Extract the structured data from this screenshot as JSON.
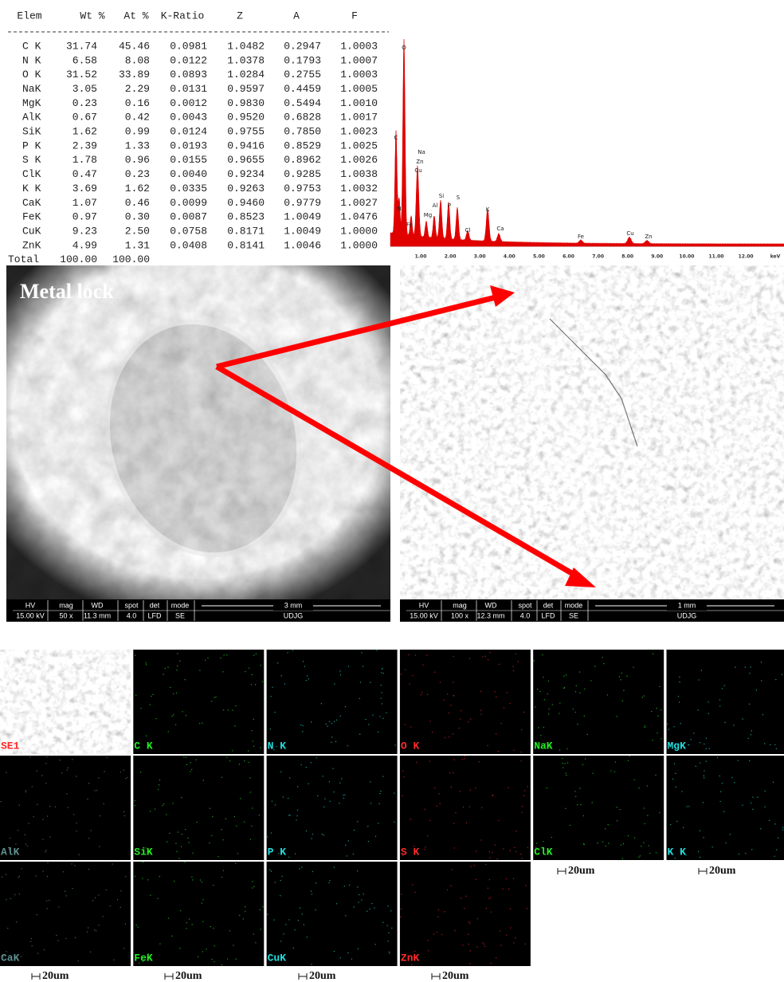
{
  "table": {
    "headers": [
      "Elem",
      "Wt %",
      "At %",
      "K-Ratio",
      "Z",
      "A",
      "F"
    ],
    "rows": [
      [
        "C K",
        "31.74",
        "45.46",
        "0.0981",
        "1.0482",
        "0.2947",
        "1.0003"
      ],
      [
        "N K",
        "6.58",
        "8.08",
        "0.0122",
        "1.0378",
        "0.1793",
        "1.0007"
      ],
      [
        "O K",
        "31.52",
        "33.89",
        "0.0893",
        "1.0284",
        "0.2755",
        "1.0003"
      ],
      [
        "NaK",
        "3.05",
        "2.29",
        "0.0131",
        "0.9597",
        "0.4459",
        "1.0005"
      ],
      [
        "MgK",
        "0.23",
        "0.16",
        "0.0012",
        "0.9830",
        "0.5494",
        "1.0010"
      ],
      [
        "AlK",
        "0.67",
        "0.42",
        "0.0043",
        "0.9520",
        "0.6828",
        "1.0017"
      ],
      [
        "SiK",
        "1.62",
        "0.99",
        "0.0124",
        "0.9755",
        "0.7850",
        "1.0023"
      ],
      [
        "P K",
        "2.39",
        "1.33",
        "0.0193",
        "0.9416",
        "0.8529",
        "1.0025"
      ],
      [
        "S K",
        "1.78",
        "0.96",
        "0.0155",
        "0.9655",
        "0.8962",
        "1.0026"
      ],
      [
        "ClK",
        "0.47",
        "0.23",
        "0.0040",
        "0.9234",
        "0.9285",
        "1.0038"
      ],
      [
        "K K",
        "3.69",
        "1.62",
        "0.0335",
        "0.9263",
        "0.9753",
        "1.0032"
      ],
      [
        "CaK",
        "1.07",
        "0.46",
        "0.0099",
        "0.9460",
        "0.9779",
        "1.0027"
      ],
      [
        "FeK",
        "0.97",
        "0.30",
        "0.0087",
        "0.8523",
        "1.0049",
        "1.0476"
      ],
      [
        "CuK",
        "9.23",
        "2.50",
        "0.0758",
        "0.8171",
        "1.0049",
        "1.0000"
      ],
      [
        "ZnK",
        "4.99",
        "1.31",
        "0.0408",
        "0.8141",
        "1.0046",
        "1.0000"
      ]
    ],
    "total": [
      "Total",
      "100.00",
      "100.00"
    ]
  },
  "spectrum": {
    "peak_labels": [
      "O",
      "C",
      "Na",
      "Zn",
      "Cu",
      "N",
      "Fe",
      "Mg",
      "Al",
      "Si",
      "P",
      "S",
      "Cl",
      "K",
      "Ca",
      "Fe",
      "Cu",
      "Zn"
    ],
    "axis_labels": [
      "1.00",
      "2.00",
      "3.00",
      "4.00",
      "5.00",
      "6.00",
      "7.00",
      "8.00",
      "9.00",
      "10.00",
      "11.00",
      "12.00"
    ],
    "unit": "keV"
  },
  "sem_info_headers": [
    "HV",
    "mag",
    "WD",
    "spot",
    "det",
    "mode"
  ],
  "sem_images": [
    {
      "title": "Metal lock",
      "info_values": [
        "15.00 kV",
        "50 x",
        "11.3 mm",
        "4.0",
        "LFD",
        "SE"
      ],
      "scale": "3 mm",
      "operator": "UDJG"
    },
    {
      "info_values": [
        "15.00 kV",
        "100 x",
        "12.3 mm",
        "4.0",
        "LFD",
        "SE"
      ],
      "scale": "1 mm",
      "operator": "UDJG"
    }
  ],
  "eds_maps": [
    {
      "label": "SE1",
      "color": "#ff2a2a"
    },
    {
      "label": "C K",
      "color": "#22ee22"
    },
    {
      "label": "N K",
      "color": "#22dddd"
    },
    {
      "label": "O K",
      "color": "#ff2a2a"
    },
    {
      "label": "NaK",
      "color": "#22ee22"
    },
    {
      "label": "MgK",
      "color": "#22dddd"
    },
    {
      "label": "AlK",
      "color": "#5f8f8f"
    },
    {
      "label": "SiK",
      "color": "#22ee22"
    },
    {
      "label": "P K",
      "color": "#22dddd"
    },
    {
      "label": "S K",
      "color": "#ff2a2a"
    },
    {
      "label": "ClK",
      "color": "#22ee22"
    },
    {
      "label": "K K",
      "color": "#22dddd"
    },
    {
      "label": "CaK",
      "color": "#5f8f8f"
    },
    {
      "label": "FeK",
      "color": "#22ee22"
    },
    {
      "label": "CuK",
      "color": "#22dddd"
    },
    {
      "label": "ZnK",
      "color": "#ff2a2a"
    }
  ],
  "scale_bar": "20um"
}
